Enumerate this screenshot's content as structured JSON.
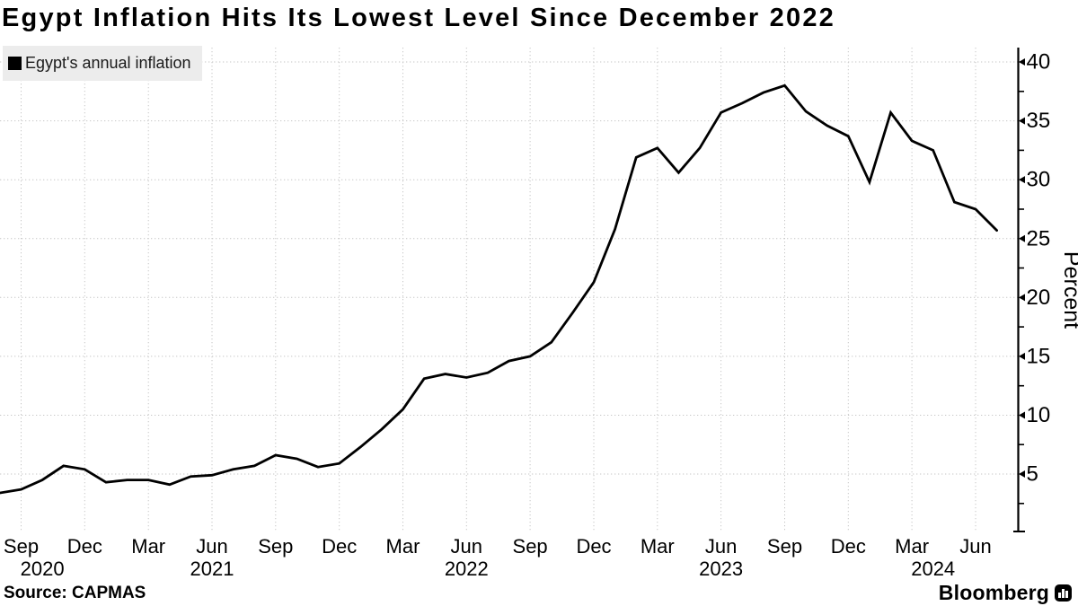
{
  "title": "Egypt Inflation Hits Its Lowest Level Since December 2022",
  "legend": {
    "swatch_color": "#000000",
    "label": "Egypt's annual inflation"
  },
  "footer": {
    "source": "Source: CAPMAS",
    "brand": "Bloomberg"
  },
  "colors": {
    "line": "#000000",
    "axis": "#000000",
    "grid": "#c6c6c6",
    "text": "#000000",
    "legend_bg": "#ececec"
  },
  "chart_data": {
    "type": "line",
    "title": "Egypt Inflation Hits Its Lowest Level Since December 2022",
    "xlabel": "",
    "ylabel": "Percent",
    "legend_position": "top-left",
    "grid": true,
    "gridline_style": "dotted",
    "y_axis_side": "right",
    "ylim": [
      0.1,
      41.2
    ],
    "y_ticks": [
      5,
      10,
      15,
      20,
      25,
      30,
      35,
      40
    ],
    "y_minor_ticks": [
      2.5,
      7.5,
      12.5,
      17.5,
      22.5,
      27.5,
      32.5,
      37.5
    ],
    "x_start_month": "2020-08",
    "x_end_month": "2024-07",
    "x_ticks": [
      {
        "label": "Sep",
        "month_index": 1
      },
      {
        "label": "Dec",
        "month_index": 4
      },
      {
        "label": "Mar",
        "month_index": 7
      },
      {
        "label": "Jun",
        "month_index": 10
      },
      {
        "label": "Sep",
        "month_index": 13
      },
      {
        "label": "Dec",
        "month_index": 16
      },
      {
        "label": "Mar",
        "month_index": 19
      },
      {
        "label": "Jun",
        "month_index": 22
      },
      {
        "label": "Sep",
        "month_index": 25
      },
      {
        "label": "Dec",
        "month_index": 28
      },
      {
        "label": "Mar",
        "month_index": 31
      },
      {
        "label": "Jun",
        "month_index": 34
      },
      {
        "label": "Sep",
        "month_index": 37
      },
      {
        "label": "Dec",
        "month_index": 40
      },
      {
        "label": "Mar",
        "month_index": 43
      },
      {
        "label": "Jun",
        "month_index": 46
      }
    ],
    "year_labels": [
      {
        "label": "2020",
        "month_index": 2
      },
      {
        "label": "2021",
        "month_index": 10
      },
      {
        "label": "2022",
        "month_index": 22
      },
      {
        "label": "2023",
        "month_index": 34
      },
      {
        "label": "2024",
        "month_index": 44
      }
    ],
    "series": [
      {
        "name": "Egypt's annual inflation",
        "color": "#000000",
        "unit": "percent",
        "first_point": "Aug 2020",
        "last_point": "Jul 2024",
        "values": [
          3.4,
          3.7,
          4.5,
          5.7,
          5.4,
          4.3,
          4.5,
          4.5,
          4.1,
          4.8,
          4.9,
          5.4,
          5.7,
          6.6,
          6.3,
          5.6,
          5.9,
          7.3,
          8.8,
          10.5,
          13.1,
          13.5,
          13.2,
          13.6,
          14.6,
          15.0,
          16.2,
          18.7,
          21.3,
          25.8,
          31.9,
          32.7,
          30.6,
          32.7,
          35.7,
          36.5,
          37.4,
          38.0,
          35.8,
          34.6,
          33.7,
          29.8,
          35.7,
          33.3,
          32.5,
          28.1,
          27.5,
          25.7
        ]
      }
    ]
  }
}
